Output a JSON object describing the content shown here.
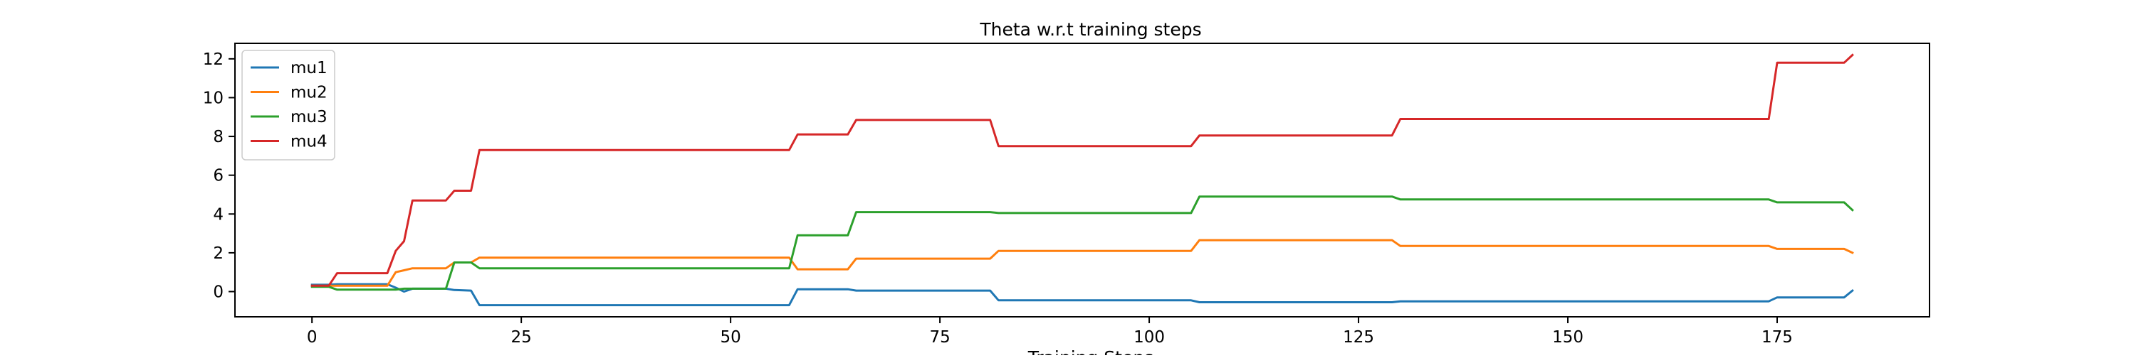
{
  "chart_data": {
    "type": "line",
    "title": "Theta w.r.t training steps",
    "xlabel": "Training Steps",
    "ylabel": "",
    "xlim": [
      -9.2,
      193.2
    ],
    "ylim": [
      -1.3,
      12.8
    ],
    "xticks": [
      0,
      25,
      50,
      75,
      100,
      125,
      150,
      175
    ],
    "yticks": [
      0,
      2,
      4,
      6,
      8,
      10,
      12
    ],
    "grid": false,
    "legend_position": "top-left",
    "series": [
      {
        "name": "mu1",
        "color": "#1f77b4",
        "points": [
          [
            0,
            0.35
          ],
          [
            2,
            0.35
          ],
          [
            3,
            0.38
          ],
          [
            9,
            0.38
          ],
          [
            10,
            0.2
          ],
          [
            11,
            0.0
          ],
          [
            12,
            0.15
          ],
          [
            16,
            0.15
          ],
          [
            17,
            0.08
          ],
          [
            19,
            0.05
          ],
          [
            20,
            -0.7
          ],
          [
            57,
            -0.7
          ],
          [
            58,
            0.12
          ],
          [
            64,
            0.12
          ],
          [
            65,
            0.05
          ],
          [
            81,
            0.05
          ],
          [
            82,
            -0.45
          ],
          [
            105,
            -0.45
          ],
          [
            106,
            -0.55
          ],
          [
            129,
            -0.55
          ],
          [
            130,
            -0.5
          ],
          [
            174,
            -0.5
          ],
          [
            175,
            -0.3
          ],
          [
            183,
            -0.3
          ],
          [
            184,
            0.05
          ]
        ]
      },
      {
        "name": "mu2",
        "color": "#ff7f0e",
        "points": [
          [
            0,
            0.3
          ],
          [
            2,
            0.3
          ],
          [
            3,
            0.3
          ],
          [
            9,
            0.3
          ],
          [
            10,
            1.0
          ],
          [
            11,
            1.1
          ],
          [
            12,
            1.2
          ],
          [
            16,
            1.2
          ],
          [
            17,
            1.5
          ],
          [
            19,
            1.5
          ],
          [
            20,
            1.75
          ],
          [
            57,
            1.75
          ],
          [
            58,
            1.15
          ],
          [
            64,
            1.15
          ],
          [
            65,
            1.7
          ],
          [
            81,
            1.7
          ],
          [
            82,
            2.1
          ],
          [
            105,
            2.1
          ],
          [
            106,
            2.65
          ],
          [
            129,
            2.65
          ],
          [
            130,
            2.35
          ],
          [
            174,
            2.35
          ],
          [
            175,
            2.2
          ],
          [
            183,
            2.2
          ],
          [
            184,
            2.0
          ]
        ]
      },
      {
        "name": "mu3",
        "color": "#2ca02c",
        "points": [
          [
            0,
            0.25
          ],
          [
            2,
            0.25
          ],
          [
            3,
            0.1
          ],
          [
            9,
            0.1
          ],
          [
            10,
            0.1
          ],
          [
            11,
            0.15
          ],
          [
            12,
            0.15
          ],
          [
            16,
            0.15
          ],
          [
            17,
            1.5
          ],
          [
            19,
            1.5
          ],
          [
            20,
            1.2
          ],
          [
            57,
            1.2
          ],
          [
            58,
            2.9
          ],
          [
            64,
            2.9
          ],
          [
            65,
            4.1
          ],
          [
            81,
            4.1
          ],
          [
            82,
            4.05
          ],
          [
            105,
            4.05
          ],
          [
            106,
            4.9
          ],
          [
            129,
            4.9
          ],
          [
            130,
            4.75
          ],
          [
            174,
            4.75
          ],
          [
            175,
            4.6
          ],
          [
            183,
            4.6
          ],
          [
            184,
            4.2
          ]
        ]
      },
      {
        "name": "mu4",
        "color": "#d62728",
        "points": [
          [
            0,
            0.3
          ],
          [
            2,
            0.3
          ],
          [
            3,
            0.95
          ],
          [
            9,
            0.95
          ],
          [
            10,
            2.1
          ],
          [
            11,
            2.6
          ],
          [
            12,
            4.7
          ],
          [
            16,
            4.7
          ],
          [
            17,
            5.2
          ],
          [
            19,
            5.2
          ],
          [
            20,
            7.3
          ],
          [
            57,
            7.3
          ],
          [
            58,
            8.1
          ],
          [
            64,
            8.1
          ],
          [
            65,
            8.85
          ],
          [
            81,
            8.85
          ],
          [
            82,
            7.5
          ],
          [
            105,
            7.5
          ],
          [
            106,
            8.05
          ],
          [
            129,
            8.05
          ],
          [
            130,
            8.9
          ],
          [
            174,
            8.9
          ],
          [
            175,
            11.8
          ],
          [
            183,
            11.8
          ],
          [
            184,
            12.2
          ]
        ]
      }
    ]
  }
}
